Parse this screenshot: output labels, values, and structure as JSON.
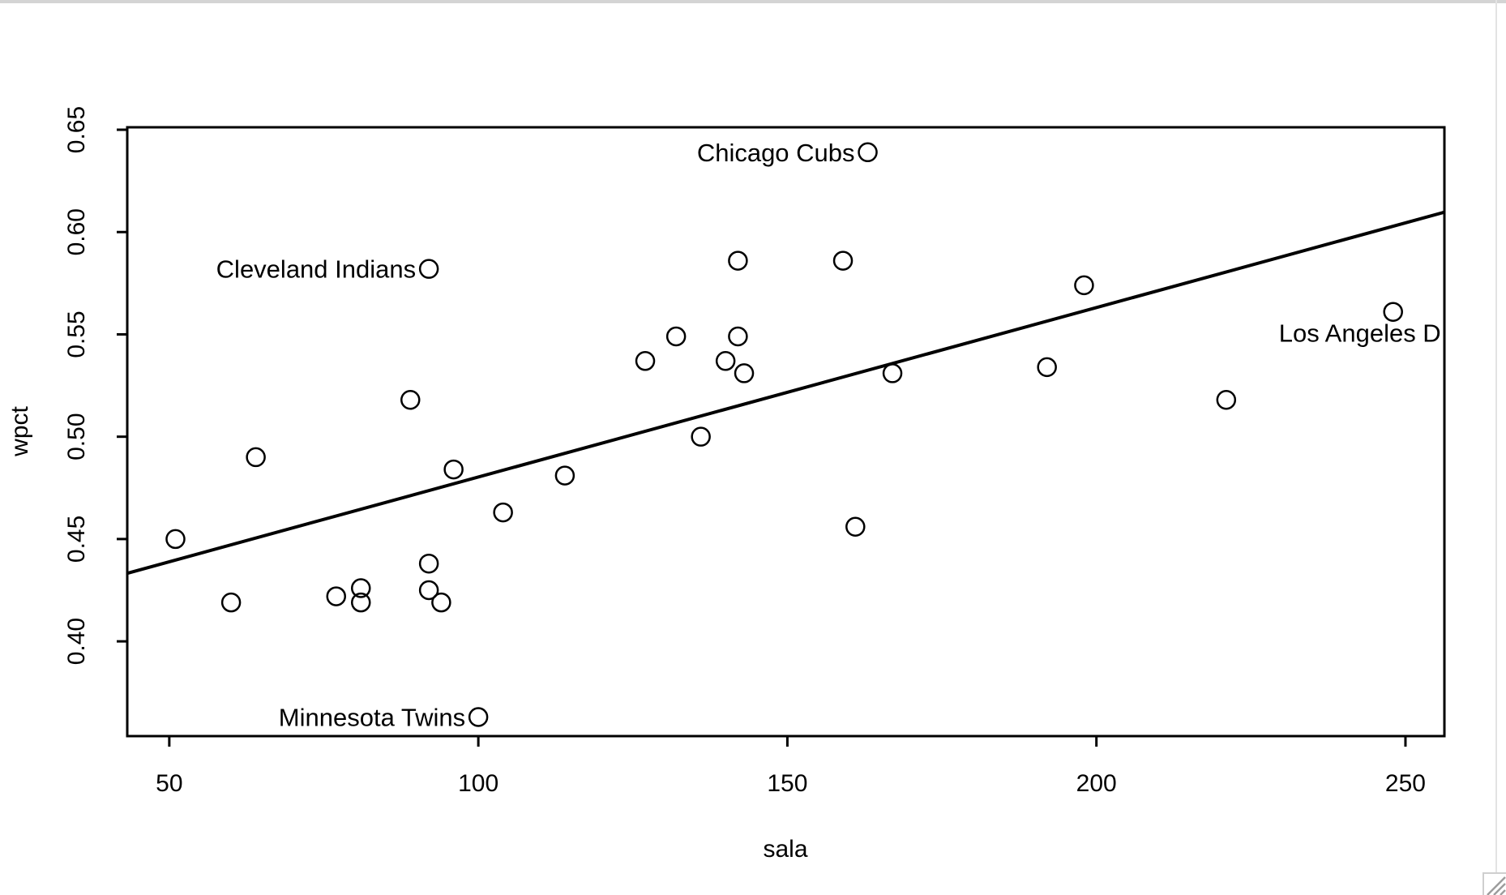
{
  "window": {
    "background": "#ffffff",
    "top_edge_color": "#d4d4d4",
    "right_edge_color": "#e3e3e3",
    "grip_border_color": "#cfcfcf",
    "grip_line_color": "#9d9d9d"
  },
  "chart_data": {
    "type": "scatter",
    "title": "",
    "xlabel": "sala",
    "ylabel": "wpct",
    "xlim": [
      43.2,
      256.3
    ],
    "ylim": [
      0.3537,
      0.6512
    ],
    "x_ticks": [
      50,
      100,
      150,
      200,
      250
    ],
    "x_tick_labels": [
      "50",
      "100",
      "150",
      "200",
      "250"
    ],
    "y_ticks": [
      0.4,
      0.45,
      0.5,
      0.55,
      0.6,
      0.65
    ],
    "y_tick_labels": [
      "0.40",
      "0.45",
      "0.50",
      "0.55",
      "0.60",
      "0.65"
    ],
    "grid": false,
    "legend": null,
    "point_style": "open-circle",
    "ink_color": "#000000",
    "points": [
      {
        "x": 51,
        "y": 0.45
      },
      {
        "x": 60,
        "y": 0.419
      },
      {
        "x": 64,
        "y": 0.49
      },
      {
        "x": 77,
        "y": 0.422
      },
      {
        "x": 81,
        "y": 0.426
      },
      {
        "x": 81,
        "y": 0.419
      },
      {
        "x": 89,
        "y": 0.518
      },
      {
        "x": 92,
        "y": 0.582,
        "label": "Cleveland Indians",
        "label_side": "left"
      },
      {
        "x": 92,
        "y": 0.438
      },
      {
        "x": 92,
        "y": 0.425
      },
      {
        "x": 94,
        "y": 0.419
      },
      {
        "x": 96,
        "y": 0.484
      },
      {
        "x": 100,
        "y": 0.363,
        "label": "Minnesota Twins",
        "label_side": "left"
      },
      {
        "x": 104,
        "y": 0.463
      },
      {
        "x": 114,
        "y": 0.481
      },
      {
        "x": 127,
        "y": 0.537
      },
      {
        "x": 132,
        "y": 0.549
      },
      {
        "x": 136,
        "y": 0.5
      },
      {
        "x": 140,
        "y": 0.537
      },
      {
        "x": 142,
        "y": 0.549
      },
      {
        "x": 142,
        "y": 0.586
      },
      {
        "x": 143,
        "y": 0.531
      },
      {
        "x": 159,
        "y": 0.586
      },
      {
        "x": 161,
        "y": 0.456
      },
      {
        "x": 163,
        "y": 0.639,
        "label": "Chicago Cubs",
        "label_side": "left"
      },
      {
        "x": 167,
        "y": 0.531
      },
      {
        "x": 192,
        "y": 0.534
      },
      {
        "x": 198,
        "y": 0.574
      },
      {
        "x": 221,
        "y": 0.518
      },
      {
        "x": 248,
        "y": 0.561,
        "label": "Los Angeles D",
        "label_side": "below-left"
      }
    ],
    "regression_line": {
      "intercept": 0.3975,
      "slope": 0.000828
    }
  }
}
